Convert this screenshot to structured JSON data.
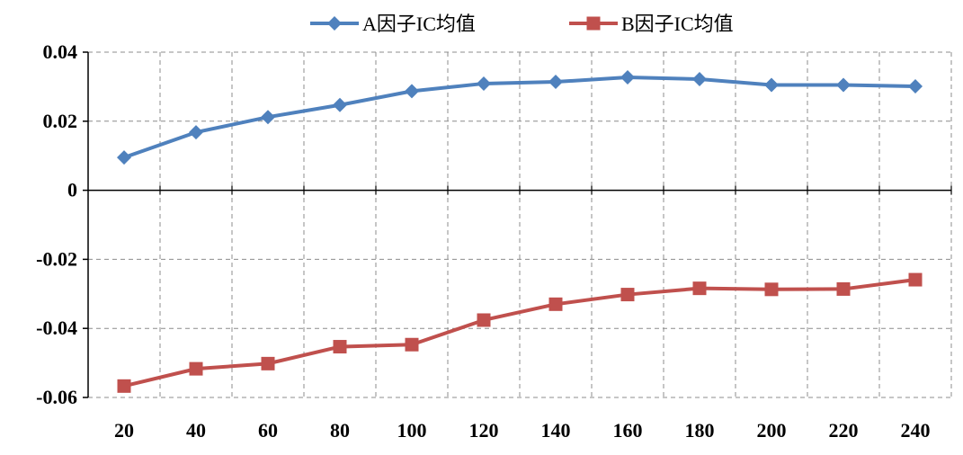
{
  "chart_data": {
    "type": "line",
    "title": "",
    "xlabel": "",
    "ylabel": "",
    "categories": [
      "20",
      "40",
      "60",
      "80",
      "100",
      "120",
      "140",
      "160",
      "180",
      "200",
      "220",
      "240"
    ],
    "ylim": [
      -0.06,
      0.04
    ],
    "yticks": [
      0.04,
      0.02,
      0,
      -0.02,
      -0.04,
      -0.06
    ],
    "ytick_labels": [
      "0.04",
      "0.02",
      "0",
      "-0.02",
      "-0.04",
      "-0.06"
    ],
    "grid": true,
    "legend_position": "top-center",
    "series": [
      {
        "name": "A因子IC均值",
        "color": "#4F81BD",
        "marker": "diamond",
        "values": [
          0.0095,
          0.0168,
          0.0212,
          0.0247,
          0.0287,
          0.0309,
          0.0314,
          0.0327,
          0.0322,
          0.0305,
          0.0305,
          0.0301
        ]
      },
      {
        "name": "B因子IC均值",
        "color": "#C0504D",
        "marker": "square",
        "values": [
          -0.0567,
          -0.0517,
          -0.0502,
          -0.0453,
          -0.0447,
          -0.0376,
          -0.033,
          -0.0302,
          -0.0284,
          -0.0287,
          -0.0286,
          -0.0259
        ]
      }
    ]
  }
}
